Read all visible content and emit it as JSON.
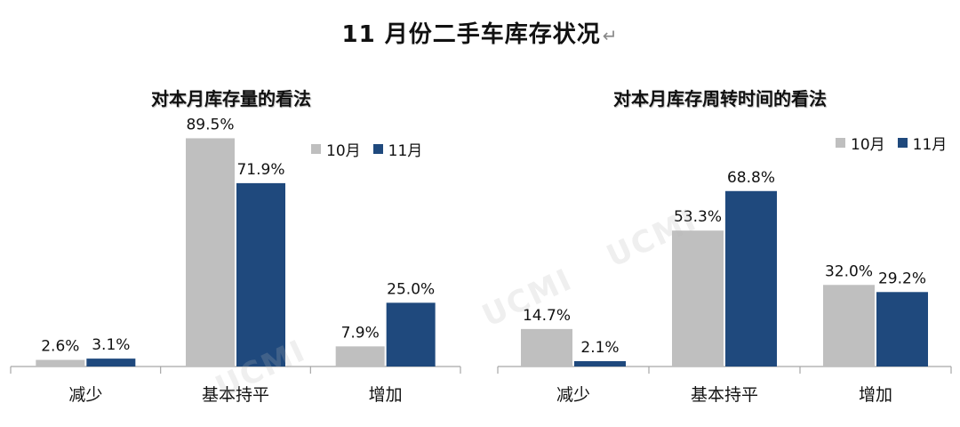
{
  "title": "11 月份二手车库存状况",
  "title_mark": "↵",
  "watermark": "UCMI",
  "colors": {
    "oct": "#bfbfbf",
    "nov": "#1f497d",
    "axis": "#a6a6a6"
  },
  "legend": {
    "oct": "10月",
    "nov": "11月"
  },
  "chart_data": [
    {
      "type": "bar",
      "title": "对本月库存量的看法",
      "categories": [
        "减少",
        "基本持平",
        "增加"
      ],
      "series": [
        {
          "name": "10月",
          "values": [
            2.6,
            89.5,
            7.9
          ],
          "labels": [
            "2.6%",
            "89.5%",
            "7.9%"
          ]
        },
        {
          "name": "11月",
          "values": [
            3.1,
            71.9,
            25.0
          ],
          "labels": [
            "3.1%",
            "71.9%",
            "25.0%"
          ]
        }
      ],
      "ylim": [
        0,
        100
      ],
      "legend_position": "top-right"
    },
    {
      "type": "bar",
      "title": "对本月库存周转时间的看法",
      "categories": [
        "减少",
        "基本持平",
        "增加"
      ],
      "series": [
        {
          "name": "10月",
          "values": [
            14.7,
            53.3,
            32.0
          ],
          "labels": [
            "14.7%",
            "53.3%",
            "32.0%"
          ]
        },
        {
          "name": "11月",
          "values": [
            2.1,
            68.8,
            29.2
          ],
          "labels": [
            "2.1%",
            "68.8%",
            "29.2%"
          ]
        }
      ],
      "ylim": [
        0,
        100
      ],
      "legend_position": "top-right"
    }
  ]
}
